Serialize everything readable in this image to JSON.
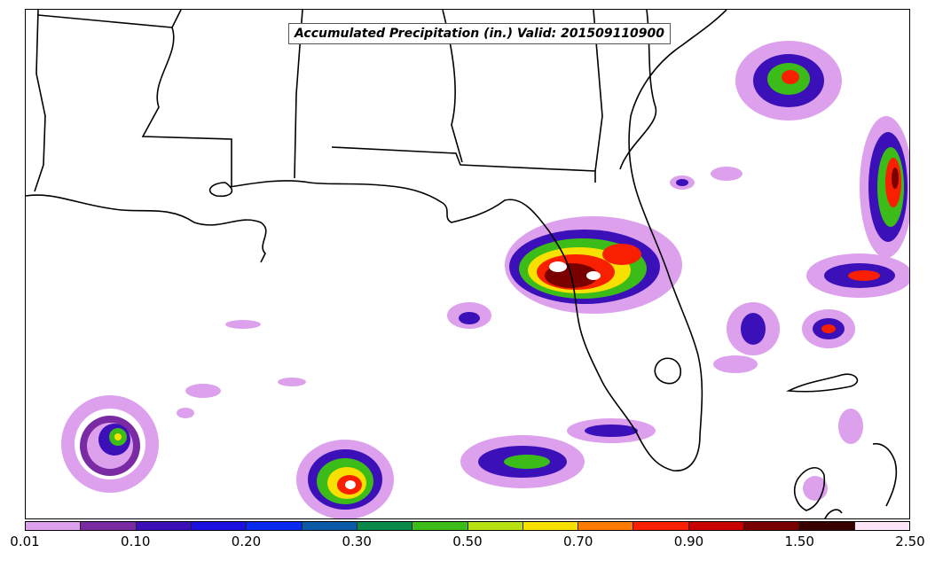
{
  "title": "Accumulated Precipitation (in.) Valid: 201509110900",
  "colorbar": {
    "colors": [
      "#dca0ec",
      "#7a2aa2",
      "#3b10b8",
      "#1b10e0",
      "#0a2af0",
      "#0a5aa8",
      "#0a8a4a",
      "#3cbc18",
      "#b8e010",
      "#f8e000",
      "#ff7a00",
      "#f82000",
      "#c80000",
      "#7a0000",
      "#3a0000",
      "#fde6f8"
    ],
    "tick_labels": [
      "0.01",
      "0.10",
      "0.20",
      "0.30",
      "0.50",
      "0.70",
      "0.90",
      "1.50",
      "2.50"
    ]
  }
}
